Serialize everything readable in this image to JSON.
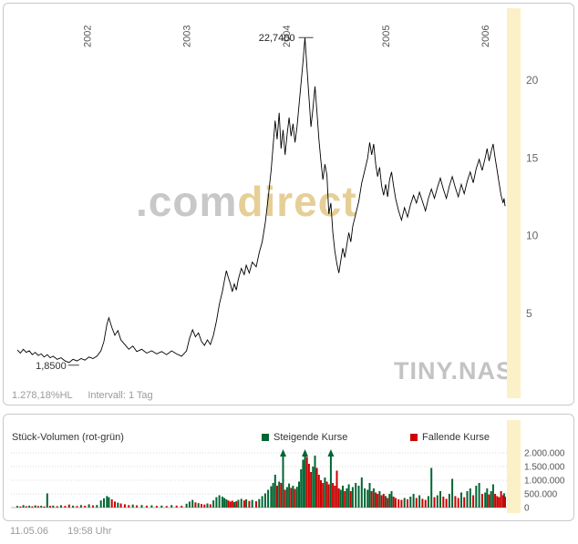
{
  "colors": {
    "up": "#006633",
    "down": "#cc0000",
    "band": "#fbf0c6",
    "line": "#000000",
    "watermark_gray": "#c8c8c8",
    "watermark_gold": "#e6cf96"
  },
  "price_panel": {
    "footer_change": "1.278,18%HL",
    "footer_interval": "Intervall: 1 Tag",
    "watermark_brand_prefix": ".com",
    "watermark_brand_suffix": "direct",
    "watermark_ticker": "TINY.NAS",
    "peak_label": "22,7400",
    "low_label": "1,8500"
  },
  "volume_panel": {
    "title": "Stück-Volumen (rot-grün)",
    "legend": [
      {
        "label": "Steigende Kurse",
        "color": "#006633"
      },
      {
        "label": "Fallende Kurse",
        "color": "#cc0000"
      }
    ],
    "y_tick_labels": [
      "2.000.000",
      "1.500.000",
      "1.000.000",
      "500.000",
      "0"
    ]
  },
  "footer": {
    "date": "11.05.06",
    "time": "19:58 Uhr"
  },
  "chart_data": [
    {
      "type": "line",
      "series_name": "TINY.NAS",
      "interval": "1 Tag",
      "x_unit": "decimal_year",
      "x_ticks": [
        2002,
        2003,
        2004,
        2005,
        2006
      ],
      "y_ticks": [
        5,
        10,
        15,
        20
      ],
      "ylim": [
        0,
        23.5
      ],
      "xlim": [
        2001.3,
        2006.2
      ],
      "peak": {
        "x": 2004.19,
        "value": 22.74,
        "label": "22,7400"
      },
      "low": {
        "x": 2001.82,
        "value": 1.85,
        "label": "1,8500"
      },
      "points": [
        [
          2001.3,
          2.65
        ],
        [
          2001.33,
          2.45
        ],
        [
          2001.36,
          2.7
        ],
        [
          2001.39,
          2.5
        ],
        [
          2001.42,
          2.6
        ],
        [
          2001.45,
          2.35
        ],
        [
          2001.48,
          2.5
        ],
        [
          2001.51,
          2.3
        ],
        [
          2001.54,
          2.4
        ],
        [
          2001.57,
          2.2
        ],
        [
          2001.6,
          2.35
        ],
        [
          2001.63,
          2.15
        ],
        [
          2001.66,
          2.25
        ],
        [
          2001.7,
          2.05
        ],
        [
          2001.74,
          2.15
        ],
        [
          2001.78,
          1.95
        ],
        [
          2001.82,
          1.85
        ],
        [
          2001.86,
          2.05
        ],
        [
          2001.9,
          1.95
        ],
        [
          2001.94,
          2.1
        ],
        [
          2001.98,
          2.0
        ],
        [
          2002.02,
          2.2
        ],
        [
          2002.06,
          2.1
        ],
        [
          2002.1,
          2.25
        ],
        [
          2002.14,
          2.6
        ],
        [
          2002.17,
          3.2
        ],
        [
          2002.2,
          4.3
        ],
        [
          2002.22,
          4.72
        ],
        [
          2002.25,
          4.1
        ],
        [
          2002.28,
          3.6
        ],
        [
          2002.31,
          3.9
        ],
        [
          2002.34,
          3.3
        ],
        [
          2002.38,
          3.0
        ],
        [
          2002.42,
          2.7
        ],
        [
          2002.46,
          2.9
        ],
        [
          2002.5,
          2.55
        ],
        [
          2002.55,
          2.7
        ],
        [
          2002.6,
          2.45
        ],
        [
          2002.65,
          2.6
        ],
        [
          2002.7,
          2.4
        ],
        [
          2002.75,
          2.55
        ],
        [
          2002.8,
          2.35
        ],
        [
          2002.85,
          2.6
        ],
        [
          2002.9,
          2.4
        ],
        [
          2002.95,
          2.25
        ],
        [
          2003.0,
          2.6
        ],
        [
          2003.03,
          3.4
        ],
        [
          2003.06,
          3.95
        ],
        [
          2003.09,
          3.5
        ],
        [
          2003.12,
          3.75
        ],
        [
          2003.15,
          3.2
        ],
        [
          2003.18,
          2.95
        ],
        [
          2003.21,
          3.3
        ],
        [
          2003.24,
          3.0
        ],
        [
          2003.27,
          3.6
        ],
        [
          2003.3,
          4.5
        ],
        [
          2003.33,
          5.6
        ],
        [
          2003.36,
          6.4
        ],
        [
          2003.38,
          7.1
        ],
        [
          2003.4,
          7.75
        ],
        [
          2003.42,
          7.3
        ],
        [
          2003.44,
          6.9
        ],
        [
          2003.46,
          6.4
        ],
        [
          2003.48,
          6.9
        ],
        [
          2003.5,
          6.5
        ],
        [
          2003.52,
          7.2
        ],
        [
          2003.55,
          7.9
        ],
        [
          2003.58,
          7.5
        ],
        [
          2003.6,
          8.1
        ],
        [
          2003.63,
          7.6
        ],
        [
          2003.66,
          8.3
        ],
        [
          2003.7,
          8.0
        ],
        [
          2003.73,
          8.9
        ],
        [
          2003.76,
          9.6
        ],
        [
          2003.79,
          10.8
        ],
        [
          2003.82,
          12.4
        ],
        [
          2003.85,
          14.2
        ],
        [
          2003.87,
          15.8
        ],
        [
          2003.89,
          17.4
        ],
        [
          2003.91,
          16.2
        ],
        [
          2003.93,
          17.9
        ],
        [
          2003.95,
          15.6
        ],
        [
          2003.97,
          16.8
        ],
        [
          2003.99,
          15.2
        ],
        [
          2004.01,
          16.5
        ],
        [
          2004.03,
          17.6
        ],
        [
          2004.05,
          16.4
        ],
        [
          2004.07,
          17.2
        ],
        [
          2004.09,
          16.0
        ],
        [
          2004.11,
          17.0
        ],
        [
          2004.13,
          18.4
        ],
        [
          2004.15,
          19.8
        ],
        [
          2004.17,
          21.2
        ],
        [
          2004.19,
          22.74
        ],
        [
          2004.21,
          20.8
        ],
        [
          2004.23,
          18.9
        ],
        [
          2004.25,
          17.0
        ],
        [
          2004.27,
          18.2
        ],
        [
          2004.29,
          19.6
        ],
        [
          2004.31,
          18.0
        ],
        [
          2004.33,
          16.2
        ],
        [
          2004.35,
          14.8
        ],
        [
          2004.37,
          13.6
        ],
        [
          2004.39,
          14.6
        ],
        [
          2004.41,
          13.9
        ],
        [
          2004.43,
          11.4
        ],
        [
          2004.45,
          12.1
        ],
        [
          2004.47,
          10.2
        ],
        [
          2004.49,
          9.0
        ],
        [
          2004.51,
          8.2
        ],
        [
          2004.53,
          7.6
        ],
        [
          2004.55,
          8.4
        ],
        [
          2004.57,
          9.2
        ],
        [
          2004.59,
          8.6
        ],
        [
          2004.61,
          9.4
        ],
        [
          2004.63,
          10.2
        ],
        [
          2004.65,
          9.6
        ],
        [
          2004.67,
          10.6
        ],
        [
          2004.7,
          11.4
        ],
        [
          2004.73,
          12.2
        ],
        [
          2004.76,
          13.4
        ],
        [
          2004.79,
          14.2
        ],
        [
          2004.82,
          15.0
        ],
        [
          2004.84,
          16.0
        ],
        [
          2004.86,
          15.2
        ],
        [
          2004.88,
          15.9
        ],
        [
          2004.9,
          14.6
        ],
        [
          2004.92,
          13.8
        ],
        [
          2004.94,
          14.4
        ],
        [
          2004.96,
          13.2
        ],
        [
          2004.98,
          12.6
        ],
        [
          2005.0,
          13.3
        ],
        [
          2005.02,
          12.5
        ],
        [
          2005.04,
          13.6
        ],
        [
          2005.06,
          14.1
        ],
        [
          2005.08,
          13.2
        ],
        [
          2005.1,
          12.4
        ],
        [
          2005.13,
          11.6
        ],
        [
          2005.16,
          11.0
        ],
        [
          2005.19,
          11.8
        ],
        [
          2005.22,
          11.2
        ],
        [
          2005.25,
          12.0
        ],
        [
          2005.28,
          12.6
        ],
        [
          2005.31,
          12.1
        ],
        [
          2005.34,
          12.8
        ],
        [
          2005.37,
          12.2
        ],
        [
          2005.4,
          11.6
        ],
        [
          2005.43,
          12.4
        ],
        [
          2005.46,
          13.0
        ],
        [
          2005.49,
          12.4
        ],
        [
          2005.52,
          13.1
        ],
        [
          2005.55,
          13.7
        ],
        [
          2005.58,
          13.0
        ],
        [
          2005.61,
          12.4
        ],
        [
          2005.64,
          13.2
        ],
        [
          2005.67,
          13.8
        ],
        [
          2005.7,
          13.1
        ],
        [
          2005.73,
          12.5
        ],
        [
          2005.76,
          13.3
        ],
        [
          2005.79,
          12.7
        ],
        [
          2005.82,
          13.5
        ],
        [
          2005.85,
          14.1
        ],
        [
          2005.88,
          13.4
        ],
        [
          2005.91,
          14.3
        ],
        [
          2005.94,
          14.9
        ],
        [
          2005.97,
          14.2
        ],
        [
          2006.0,
          15.0
        ],
        [
          2006.02,
          15.6
        ],
        [
          2006.04,
          14.8
        ],
        [
          2006.06,
          15.4
        ],
        [
          2006.08,
          15.9
        ],
        [
          2006.1,
          15.0
        ],
        [
          2006.12,
          14.2
        ],
        [
          2006.14,
          13.4
        ],
        [
          2006.16,
          12.6
        ],
        [
          2006.18,
          12.1
        ],
        [
          2006.19,
          12.4
        ],
        [
          2006.2,
          11.9
        ]
      ]
    },
    {
      "type": "bar",
      "title": "Stück-Volumen (rot-grün)",
      "x_from_price_points": true,
      "direction_rule": "green if close >= previous close, else red",
      "y_ticks_thousands": [
        2000,
        1500,
        1000,
        500,
        0
      ],
      "ylim_thousands": [
        0,
        2050
      ],
      "clip_marker": "arrow above 2.000.000",
      "volumes_thousands": [
        60,
        40,
        90,
        50,
        70,
        45,
        80,
        55,
        65,
        40,
        520,
        60,
        75,
        50,
        85,
        60,
        110,
        70,
        55,
        90,
        65,
        120,
        80,
        95,
        260,
        340,
        420,
        380,
        300,
        220,
        180,
        150,
        120,
        90,
        110,
        80,
        95,
        70,
        85,
        60,
        75,
        55,
        90,
        70,
        65,
        140,
        220,
        280,
        190,
        160,
        130,
        110,
        150,
        120,
        260,
        380,
        450,
        400,
        350,
        300,
        260,
        220,
        250,
        200,
        230,
        280,
        320,
        260,
        300,
        240,
        280,
        230,
        310,
        420,
        520,
        650,
        780,
        900,
        1200,
        800,
        950,
        900,
        2050,
        650,
        750,
        880,
        720,
        800,
        680,
        760,
        950,
        1400,
        1750,
        2050,
        1850,
        1600,
        1300,
        1500,
        1900,
        1450,
        1200,
        1000,
        900,
        1100,
        950,
        850,
        2050,
        900,
        800,
        1350,
        700,
        650,
        800,
        600,
        700,
        850,
        600,
        750,
        900,
        800,
        1100,
        700,
        650,
        900,
        600,
        700,
        550,
        500,
        600,
        450,
        500,
        420,
        350,
        500,
        600,
        400,
        350,
        300,
        280,
        350,
        300,
        400,
        500,
        350,
        450,
        320,
        280,
        420,
        1450,
        380,
        450,
        600,
        400,
        320,
        500,
        1050,
        420,
        350,
        550,
        380,
        600,
        700,
        450,
        800,
        900,
        500,
        550,
        700,
        480,
        600,
        850,
        500,
        420,
        380,
        600,
        450,
        520,
        400
      ]
    }
  ]
}
